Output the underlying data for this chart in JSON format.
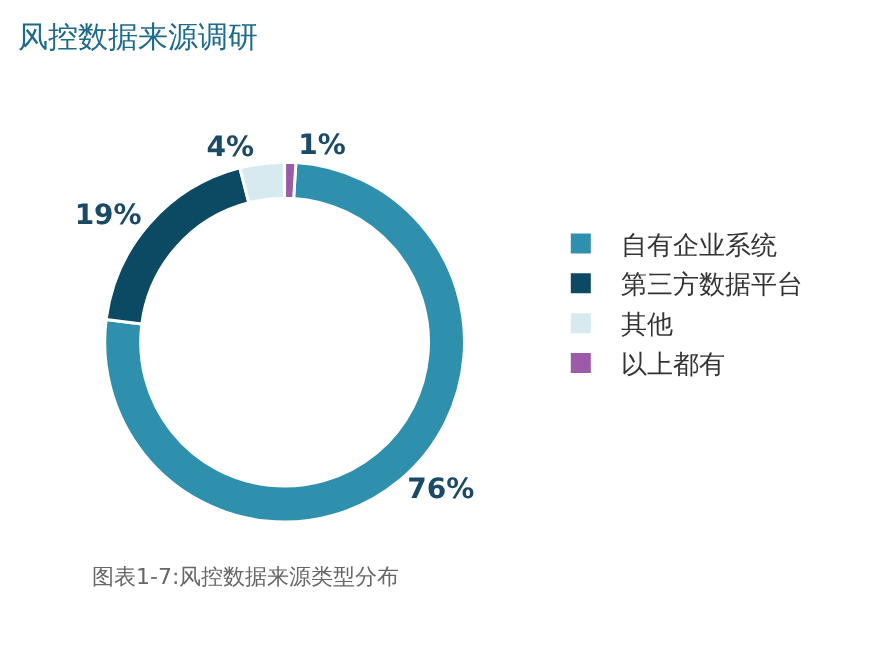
{
  "chart_data": {
    "type": "donut",
    "title": "风控数据来源调研",
    "categories": [
      "自有企业系统",
      "第三方数据平台",
      "其他",
      "以上都有"
    ],
    "values": [
      76,
      19,
      4,
      1
    ],
    "value_labels": [
      "76%",
      "19%",
      "4%",
      "1%"
    ],
    "colors": [
      "#2f90ae",
      "#0b4a62",
      "#d7eaf0",
      "#9b5ba8"
    ],
    "legend": "right",
    "annotations": [
      "图表1-7:风控数据来源类型分布"
    ]
  }
}
